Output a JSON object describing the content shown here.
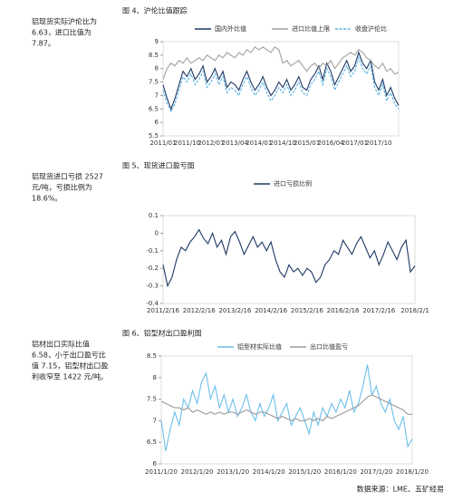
{
  "sidebar": [
    {
      "lines": [
        "铝现货实际沪伦比为",
        "6.63，进口比值为",
        "7.87。"
      ]
    },
    {
      "lines": [
        "铝现货进口亏损 2527",
        "元/吨，亏损比例为",
        "18.6%。"
      ]
    },
    {
      "lines": [
        "铝材出口实际比值",
        "6.58，小于出口盈亏比",
        "值 7.15，铝型材出口盈",
        "利收窄至 1422 元/吨。"
      ]
    }
  ],
  "chart_data": [
    {
      "type": "line",
      "title": "图 4、沪伦比值跟踪",
      "categories": [
        "2011/01",
        null,
        null,
        null,
        null,
        null,
        "2011/10",
        null,
        null,
        null,
        null,
        null,
        "2012/07",
        null,
        null,
        null,
        null,
        null,
        "2013/04",
        null,
        null,
        null,
        null,
        null,
        "2014/01",
        null,
        null,
        null,
        null,
        null,
        "2014/10",
        null,
        null,
        null,
        null,
        null,
        "2015/07",
        null,
        null,
        null,
        null,
        null,
        "2016/04",
        null,
        null,
        null,
        null,
        null,
        "2017/01",
        null,
        null,
        null,
        null,
        null,
        "2017/10",
        null,
        null,
        null,
        null,
        null
      ],
      "series": [
        {
          "name": "国内外比值",
          "color": "#1f3864",
          "style": "solid",
          "values": [
            7.4,
            6.9,
            6.5,
            6.9,
            7.4,
            7.9,
            7.7,
            8.0,
            7.6,
            7.8,
            8.1,
            7.5,
            7.7,
            8.0,
            7.6,
            7.9,
            7.3,
            7.5,
            7.4,
            7.2,
            7.6,
            7.9,
            7.5,
            7.2,
            7.4,
            7.7,
            7.3,
            7.0,
            7.2,
            7.5,
            7.3,
            7.6,
            7.2,
            7.4,
            7.7,
            7.3,
            7.2,
            7.6,
            7.8,
            8.1,
            7.6,
            8.2,
            7.9,
            7.4,
            7.7,
            8.0,
            8.3,
            7.9,
            8.1,
            8.6,
            8.2,
            8.0,
            8.3,
            7.5,
            7.2,
            7.6,
            7.0,
            7.3,
            6.9,
            6.63
          ]
        },
        {
          "name": "进口比值上限",
          "color": "#a0a0a0",
          "style": "solid",
          "values": [
            7.6,
            8.0,
            8.2,
            8.1,
            8.3,
            8.2,
            8.4,
            8.2,
            8.3,
            8.4,
            8.3,
            8.5,
            8.4,
            8.3,
            8.5,
            8.4,
            8.6,
            8.5,
            8.4,
            8.6,
            8.5,
            8.7,
            8.6,
            8.8,
            8.7,
            8.8,
            8.7,
            8.6,
            8.8,
            8.7,
            8.2,
            8.3,
            8.1,
            8.2,
            8.3,
            8.1,
            7.9,
            8.1,
            8.2,
            8.0,
            8.2,
            8.1,
            8.3,
            8.0,
            8.2,
            8.4,
            8.5,
            8.6,
            8.5,
            8.7,
            8.6,
            8.4,
            8.3,
            8.1,
            8.0,
            8.2,
            7.9,
            8.0,
            7.8,
            7.87
          ]
        },
        {
          "name": "收盘沪伦比",
          "color": "#5bb4e5",
          "style": "dashed",
          "values": [
            7.2,
            6.7,
            6.4,
            6.7,
            7.2,
            7.7,
            7.5,
            7.8,
            7.4,
            7.6,
            7.9,
            7.3,
            7.5,
            7.8,
            7.4,
            7.7,
            7.1,
            7.3,
            7.2,
            7.0,
            7.4,
            7.7,
            7.3,
            7.0,
            7.2,
            7.5,
            7.1,
            6.8,
            7.0,
            7.3,
            7.1,
            7.4,
            7.0,
            7.2,
            7.5,
            7.1,
            7.0,
            7.4,
            7.6,
            7.9,
            7.4,
            8.0,
            7.7,
            7.2,
            7.5,
            7.8,
            8.1,
            7.7,
            7.9,
            8.4,
            8.0,
            7.8,
            8.1,
            7.3,
            7.0,
            7.4,
            6.8,
            7.1,
            6.7,
            6.5
          ]
        }
      ],
      "ylim": [
        5.5,
        9
      ],
      "yticks": [
        5.5,
        6,
        6.5,
        7,
        7.5,
        8,
        8.5,
        9
      ]
    },
    {
      "type": "line",
      "title": "图 5、现货进口盈亏图",
      "categories": [
        "2011/2/16",
        null,
        null,
        null,
        null,
        null,
        null,
        null,
        "2012/2/16",
        null,
        null,
        null,
        null,
        null,
        null,
        null,
        "2013/2/16",
        null,
        null,
        null,
        null,
        null,
        null,
        null,
        "2014/2/16",
        null,
        null,
        null,
        null,
        null,
        null,
        null,
        "2015/2/16",
        null,
        null,
        null,
        null,
        null,
        null,
        null,
        "2016/2/16",
        null,
        null,
        null,
        null,
        null,
        null,
        null,
        "2017/2/16",
        null,
        null,
        null,
        null,
        null,
        null,
        null,
        "2018/2/1"
      ],
      "series": [
        {
          "name": "进口亏损比例",
          "color": "#1f3864",
          "style": "solid",
          "values": [
            -0.18,
            -0.3,
            -0.25,
            -0.15,
            -0.08,
            -0.1,
            -0.05,
            -0.02,
            0.02,
            -0.03,
            -0.06,
            0.0,
            -0.08,
            -0.04,
            -0.12,
            -0.02,
            0.01,
            -0.05,
            -0.12,
            -0.07,
            -0.02,
            -0.08,
            -0.05,
            -0.1,
            -0.05,
            -0.15,
            -0.22,
            -0.25,
            -0.18,
            -0.22,
            -0.2,
            -0.24,
            -0.2,
            -0.22,
            -0.28,
            -0.25,
            -0.18,
            -0.15,
            -0.1,
            -0.12,
            -0.04,
            -0.08,
            -0.12,
            -0.06,
            -0.02,
            -0.08,
            -0.14,
            -0.1,
            -0.18,
            -0.12,
            -0.05,
            -0.1,
            -0.15,
            -0.08,
            -0.04,
            -0.22,
            -0.186
          ]
        }
      ],
      "ylim": [
        -0.4,
        0.1
      ],
      "yticks": [
        0.1,
        0,
        -0.1,
        -0.2,
        -0.3,
        -0.4
      ]
    },
    {
      "type": "line",
      "title": "图 6、铝型材出口盈利图",
      "categories": [
        "2011/1/20",
        null,
        null,
        null,
        null,
        null,
        null,
        null,
        "2012/1/20",
        null,
        null,
        null,
        null,
        null,
        null,
        null,
        "2013/1/20",
        null,
        null,
        null,
        null,
        null,
        null,
        null,
        "2014/1/20",
        null,
        null,
        null,
        null,
        null,
        null,
        null,
        "2015/1/20",
        null,
        null,
        null,
        null,
        null,
        null,
        null,
        "2016/1/20",
        null,
        null,
        null,
        null,
        null,
        null,
        null,
        "2017/1/20",
        null,
        null,
        null,
        null,
        null,
        null,
        null,
        "2018/1/20"
      ],
      "series": [
        {
          "name": "铝型材实际比值",
          "color": "#6cbfea",
          "style": "solid",
          "values": [
            7.0,
            6.3,
            6.8,
            7.2,
            6.9,
            7.5,
            7.3,
            7.7,
            7.4,
            7.9,
            8.1,
            7.5,
            7.8,
            7.3,
            7.6,
            7.2,
            7.5,
            7.1,
            7.3,
            7.6,
            7.2,
            7.0,
            7.4,
            7.1,
            7.3,
            7.6,
            7.0,
            7.2,
            7.4,
            6.9,
            7.1,
            7.3,
            7.0,
            6.7,
            7.2,
            6.9,
            7.3,
            7.1,
            7.4,
            7.2,
            7.5,
            7.3,
            7.7,
            7.2,
            7.4,
            7.8,
            8.3,
            7.6,
            7.8,
            7.4,
            7.2,
            7.5,
            7.0,
            6.8,
            7.1,
            6.4,
            6.58
          ]
        },
        {
          "name": "出口比值盈亏",
          "color": "#9a9a9a",
          "style": "solid",
          "values": [
            7.45,
            7.4,
            7.35,
            7.3,
            7.3,
            7.25,
            7.3,
            7.2,
            7.25,
            7.2,
            7.15,
            7.2,
            7.15,
            7.2,
            7.15,
            7.2,
            7.2,
            7.15,
            7.2,
            7.25,
            7.2,
            7.15,
            7.2,
            7.2,
            7.15,
            7.1,
            7.05,
            7.1,
            7.05,
            7.0,
            7.05,
            7.0,
            7.0,
            7.05,
            7.0,
            7.05,
            7.0,
            7.1,
            7.05,
            7.1,
            7.15,
            7.2,
            7.25,
            7.3,
            7.35,
            7.45,
            7.55,
            7.6,
            7.55,
            7.5,
            7.45,
            7.4,
            7.35,
            7.3,
            7.25,
            7.15,
            7.15
          ]
        }
      ],
      "ylim": [
        6,
        8.5
      ],
      "yticks": [
        6,
        6.5,
        7,
        7.5,
        8,
        8.5
      ]
    }
  ],
  "source": "数据来源：LME、五矿经易"
}
